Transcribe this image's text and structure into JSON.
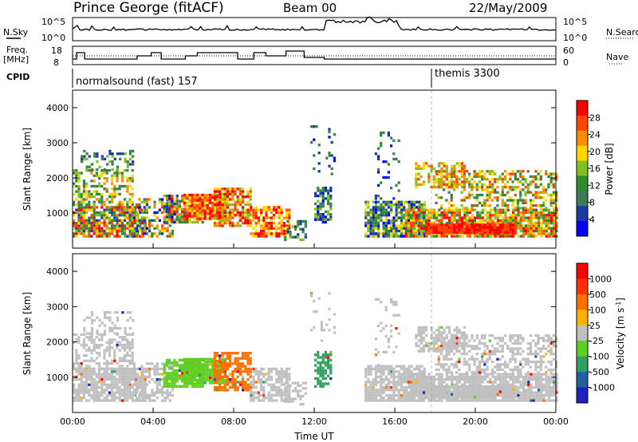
{
  "header": {
    "station": "Prince George (fitACF)",
    "beam": "Beam 00",
    "date": "22/May/2009"
  },
  "left_labels": {
    "nsky": "N.Sky",
    "freq_line1": "Freq.",
    "freq_line2": "[MHz]",
    "cpid": "CPID"
  },
  "right_labels": {
    "nsearch": "N.Search",
    "nave": "Nave"
  },
  "noise_axis": {
    "left_top": "10^5",
    "left_bottom": "10^0",
    "right_top": "10^5",
    "right_bottom": "10^0"
  },
  "freq_axis": {
    "left_top": "18",
    "left_bottom": "8",
    "right_top": "60",
    "right_bottom": "0"
  },
  "cpid_modes": [
    {
      "label": "normalsound (fast) 157",
      "start_hour": 0
    },
    {
      "label": "themis 3300",
      "start_hour": 18.0
    }
  ],
  "colors": {
    "power": [
      "#0000ff",
      "#1a3aa6",
      "#3d7a5a",
      "#2e8b2e",
      "#80c020",
      "#ffd700",
      "#ff8c00",
      "#ff4500",
      "#ff0000"
    ],
    "velocity": [
      "#2020c0",
      "#2060a0",
      "#30a060",
      "#60d020",
      "#c0c0c0",
      "#ffb000",
      "#ff7000",
      "#ff3000",
      "#ff0000"
    ]
  },
  "chart_data": [
    {
      "type": "heatmap",
      "name": "power",
      "ylabel": "Slant Range [km]",
      "xlabel": "Time UT",
      "x_ticks": [
        "00:00",
        "04:00",
        "08:00",
        "12:00",
        "16:00",
        "20:00",
        "00:00"
      ],
      "y_ticks": [
        "1000",
        "2000",
        "3000",
        "4000"
      ],
      "ylim": [
        0,
        4500
      ],
      "colorbar": {
        "label": "Power [dB]",
        "ticks": [
          "4",
          "8",
          "12",
          "16",
          "20",
          "24",
          "28"
        ],
        "range": [
          0,
          32
        ]
      }
    },
    {
      "type": "heatmap",
      "name": "velocity",
      "ylabel": "Slant Range [km]",
      "xlabel": "Time UT",
      "x_ticks": [
        "00:00",
        "04:00",
        "08:00",
        "12:00",
        "16:00",
        "20:00",
        "00:00"
      ],
      "y_ticks": [
        "1000",
        "2000",
        "3000",
        "4000"
      ],
      "ylim": [
        0,
        4500
      ],
      "colorbar": {
        "label": "Velocity [m s^-1]",
        "ticks": [
          "1000",
          "500",
          "100",
          "25",
          "-25",
          "-100",
          "-500",
          "-1000"
        ]
      }
    }
  ]
}
